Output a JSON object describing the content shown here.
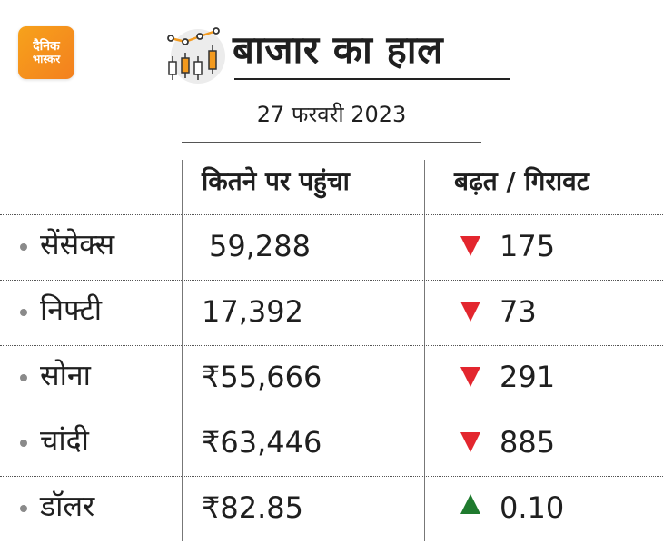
{
  "brand": {
    "logo_line1": "दैनिक",
    "logo_line2": "भास्कर",
    "logo_color": "#f39a1e"
  },
  "header": {
    "icon": "candlestick-chart-icon",
    "title": "बाजार का हाल",
    "date": "27 फरवरी 2023"
  },
  "table": {
    "columns": [
      "कितने पर पहुंचा",
      "बढ़त / गिरावट"
    ],
    "rows": [
      {
        "name": "सेंसेक्स",
        "value": "59,288",
        "direction": "down",
        "change": "175"
      },
      {
        "name": "निफ्टी",
        "value": "17,392",
        "direction": "down",
        "change": "73"
      },
      {
        "name": "सोना",
        "value": "₹55,666",
        "direction": "down",
        "change": "291"
      },
      {
        "name": "चांदी",
        "value": "₹63,446",
        "direction": "down",
        "change": "885"
      },
      {
        "name": "डॉलर",
        "value": "₹82.85",
        "direction": "up",
        "change": "0.10"
      }
    ]
  },
  "colors": {
    "down": "#e3262e",
    "up": "#1f7a2e"
  }
}
